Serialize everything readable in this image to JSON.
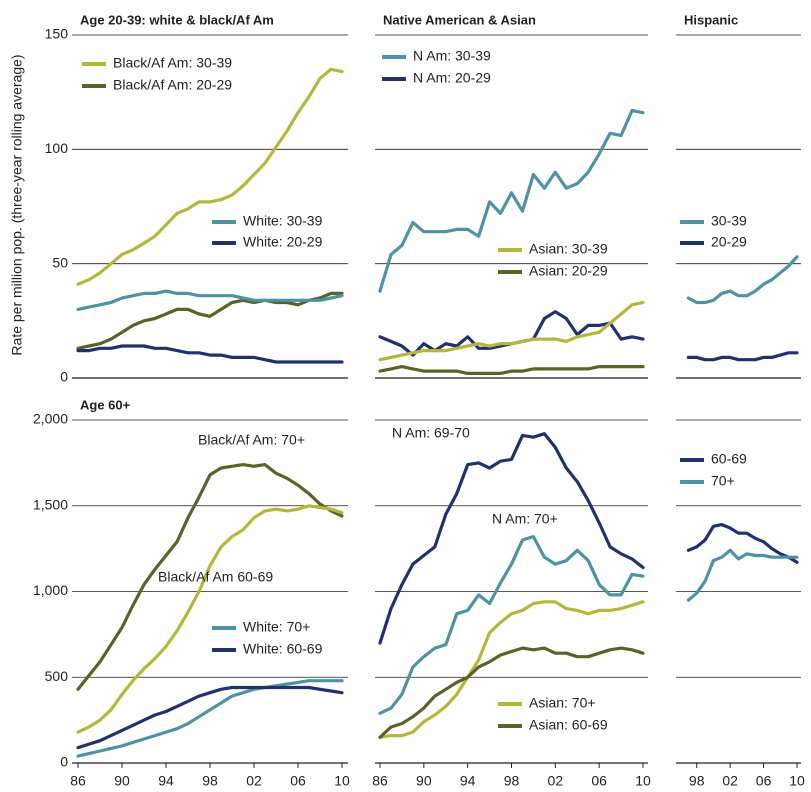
{
  "ylabel": "Rate per million pop. (three-year rolling average)",
  "chart_data": [
    {
      "type": "line",
      "title": "Age 20-39:  white & black/Af Am",
      "x": [
        1986,
        1987,
        1988,
        1989,
        1990,
        1991,
        1992,
        1993,
        1994,
        1995,
        1996,
        1997,
        1998,
        1999,
        2000,
        2001,
        2002,
        2003,
        2004,
        2005,
        2006,
        2007,
        2008,
        2009,
        2010
      ],
      "xlim": [
        1986,
        2010
      ],
      "ylim": [
        0,
        150
      ],
      "yticks": [
        0,
        50,
        100,
        150
      ],
      "grid": true,
      "series": [
        {
          "name": "Black/Af Am: 30-39",
          "color": "#b3b83b",
          "values": [
            41,
            43,
            46,
            50,
            54,
            56,
            59,
            62,
            67,
            72,
            74,
            77,
            77,
            78,
            80,
            84,
            89,
            94,
            101,
            108,
            116,
            123,
            131,
            135,
            134
          ]
        },
        {
          "name": "Black/Af Am: 20-29",
          "color": "#5c6128",
          "values": [
            13,
            14,
            15,
            17,
            20,
            23,
            25,
            26,
            28,
            30,
            30,
            28,
            27,
            30,
            33,
            34,
            33,
            34,
            33,
            33,
            32,
            34,
            35,
            37,
            37
          ]
        },
        {
          "name": "White: 30-39",
          "color": "#4e93a3",
          "values": [
            30,
            31,
            32,
            33,
            35,
            36,
            37,
            37,
            38,
            37,
            37,
            36,
            36,
            36,
            36,
            35,
            34,
            34,
            34,
            34,
            34,
            34,
            34,
            35,
            36
          ]
        },
        {
          "name": "White: 20-29",
          "color": "#23306e",
          "values": [
            12,
            12,
            13,
            13,
            14,
            14,
            14,
            13,
            13,
            12,
            11,
            11,
            10,
            10,
            9,
            9,
            9,
            8,
            7,
            7,
            7,
            7,
            7,
            7,
            7
          ]
        }
      ]
    },
    {
      "type": "line",
      "title": "Native American & Asian",
      "x": [
        1986,
        1987,
        1988,
        1989,
        1990,
        1991,
        1992,
        1993,
        1994,
        1995,
        1996,
        1997,
        1998,
        1999,
        2000,
        2001,
        2002,
        2003,
        2004,
        2005,
        2006,
        2007,
        2008,
        2009,
        2010
      ],
      "xlim": [
        1986,
        2010
      ],
      "ylim": [
        0,
        150
      ],
      "yticks": [
        0,
        50,
        100,
        150
      ],
      "grid": true,
      "series": [
        {
          "name": "N Am: 30-39",
          "color": "#4e93a3",
          "values": [
            38,
            54,
            58,
            68,
            64,
            64,
            64,
            65,
            65,
            62,
            77,
            72,
            81,
            73,
            89,
            83,
            90,
            83,
            85,
            90,
            98,
            107,
            106,
            117,
            116
          ]
        },
        {
          "name": "N Am: 20-29",
          "color": "#23306e",
          "values": [
            18,
            16,
            14,
            10,
            15,
            12,
            15,
            14,
            18,
            13,
            13,
            14,
            15,
            16,
            17,
            26,
            29,
            26,
            19,
            23,
            23,
            24,
            17,
            18,
            17
          ]
        },
        {
          "name": "Asian: 30-39",
          "color": "#b3b83b",
          "values": [
            8,
            9,
            10,
            11,
            12,
            12,
            12,
            13,
            14,
            15,
            14,
            15,
            15,
            16,
            17,
            17,
            17,
            16,
            18,
            19,
            20,
            24,
            28,
            32,
            33
          ]
        },
        {
          "name": "Asian: 20-29",
          "color": "#5c6128",
          "values": [
            3,
            4,
            5,
            4,
            3,
            3,
            3,
            3,
            2,
            2,
            2,
            2,
            3,
            3,
            4,
            4,
            4,
            4,
            4,
            4,
            5,
            5,
            5,
            5,
            5
          ]
        }
      ]
    },
    {
      "type": "line",
      "title": "Hispanic",
      "x": [
        1997,
        1998,
        1999,
        2000,
        2001,
        2002,
        2003,
        2004,
        2005,
        2006,
        2007,
        2008,
        2009,
        2010
      ],
      "xlim": [
        1996,
        2010
      ],
      "ylim": [
        0,
        150
      ],
      "yticks": [
        0,
        50,
        100,
        150
      ],
      "grid": true,
      "series": [
        {
          "name": "30-39",
          "color": "#4e93a3",
          "values": [
            35,
            33,
            33,
            34,
            37,
            38,
            36,
            36,
            38,
            41,
            43,
            46,
            49,
            53
          ]
        },
        {
          "name": "20-29",
          "color": "#23306e",
          "values": [
            9,
            9,
            8,
            8,
            9,
            9,
            8,
            8,
            8,
            9,
            9,
            10,
            11,
            11
          ]
        }
      ]
    },
    {
      "type": "line",
      "title": "Age 60+",
      "x": [
        1986,
        1987,
        1988,
        1989,
        1990,
        1991,
        1992,
        1993,
        1994,
        1995,
        1996,
        1997,
        1998,
        1999,
        2000,
        2001,
        2002,
        2003,
        2004,
        2005,
        2006,
        2007,
        2008,
        2009,
        2010
      ],
      "xlim": [
        1986,
        2010
      ],
      "ylim": [
        0,
        2000
      ],
      "yticks": [
        0,
        500,
        {
          "value": 1000,
          "label": "1,000"
        },
        {
          "value": 1500,
          "label": "1,500"
        },
        {
          "value": 2000,
          "label": "2,000"
        }
      ],
      "xticks": [
        {
          "value": 1986,
          "label": "86"
        },
        {
          "value": 1990,
          "label": "90"
        },
        {
          "value": 1994,
          "label": "94"
        },
        {
          "value": 1998,
          "label": "98"
        },
        {
          "value": 2002,
          "label": "02"
        },
        {
          "value": 2006,
          "label": "06"
        },
        {
          "value": 2010,
          "label": "10"
        }
      ],
      "grid": true,
      "series": [
        {
          "name": "Black/Af Am: 70+",
          "color": "#5c6128",
          "values": [
            430,
            510,
            590,
            690,
            790,
            920,
            1040,
            1130,
            1210,
            1290,
            1430,
            1550,
            1680,
            1720,
            1730,
            1740,
            1730,
            1740,
            1690,
            1660,
            1620,
            1570,
            1510,
            1470,
            1440
          ]
        },
        {
          "name": "Black/Af Am 60-69",
          "color": "#b3b83b",
          "values": [
            180,
            210,
            250,
            310,
            400,
            480,
            550,
            610,
            680,
            770,
            880,
            1000,
            1150,
            1260,
            1320,
            1360,
            1430,
            1470,
            1480,
            1470,
            1480,
            1500,
            1490,
            1480,
            1460
          ]
        },
        {
          "name": "White: 70+",
          "color": "#4e93a3",
          "values": [
            40,
            55,
            70,
            85,
            100,
            120,
            140,
            160,
            180,
            200,
            230,
            270,
            310,
            350,
            390,
            410,
            430,
            440,
            450,
            460,
            470,
            480,
            480,
            480,
            480
          ]
        },
        {
          "name": "White: 60-69",
          "color": "#23306e",
          "values": [
            90,
            110,
            130,
            160,
            190,
            220,
            250,
            280,
            300,
            330,
            360,
            390,
            410,
            430,
            440,
            440,
            440,
            440,
            440,
            440,
            440,
            440,
            430,
            420,
            410
          ]
        }
      ]
    },
    {
      "type": "line",
      "x": [
        1986,
        1987,
        1988,
        1989,
        1990,
        1991,
        1992,
        1993,
        1994,
        1995,
        1996,
        1997,
        1998,
        1999,
        2000,
        2001,
        2002,
        2003,
        2004,
        2005,
        2006,
        2007,
        2008,
        2009,
        2010
      ],
      "xlim": [
        1986,
        2010
      ],
      "ylim": [
        0,
        2000
      ],
      "yticks": [
        0,
        500,
        1000,
        1500,
        2000
      ],
      "xticks": [
        {
          "value": 1986,
          "label": "86"
        },
        {
          "value": 1990,
          "label": "90"
        },
        {
          "value": 1994,
          "label": "94"
        },
        {
          "value": 1998,
          "label": "98"
        },
        {
          "value": 2002,
          "label": "02"
        },
        {
          "value": 2006,
          "label": "06"
        },
        {
          "value": 2010,
          "label": "10"
        }
      ],
      "grid": true,
      "series": [
        {
          "name": "N Am: 69-70",
          "color": "#23306e",
          "values": [
            700,
            900,
            1040,
            1160,
            1210,
            1260,
            1450,
            1570,
            1740,
            1750,
            1720,
            1760,
            1770,
            1910,
            1900,
            1920,
            1840,
            1720,
            1640,
            1530,
            1400,
            1260,
            1220,
            1190,
            1140
          ]
        },
        {
          "name": "N Am: 70+",
          "color": "#4e93a3",
          "values": [
            290,
            320,
            400,
            560,
            620,
            670,
            690,
            870,
            890,
            980,
            930,
            1050,
            1160,
            1300,
            1320,
            1200,
            1160,
            1180,
            1240,
            1180,
            1040,
            980,
            980,
            1100,
            1090
          ]
        },
        {
          "name": "Asian: 70+",
          "color": "#b3b83b",
          "values": [
            150,
            160,
            160,
            180,
            240,
            280,
            330,
            400,
            500,
            600,
            760,
            820,
            870,
            890,
            930,
            940,
            940,
            900,
            890,
            870,
            890,
            890,
            900,
            920,
            940
          ]
        },
        {
          "name": "Asian: 60-69",
          "color": "#5c6128",
          "values": [
            150,
            210,
            230,
            270,
            320,
            390,
            430,
            470,
            500,
            560,
            590,
            630,
            650,
            670,
            660,
            670,
            640,
            640,
            620,
            620,
            640,
            660,
            670,
            660,
            640
          ]
        }
      ]
    },
    {
      "type": "line",
      "x": [
        1997,
        1998,
        1999,
        2000,
        2001,
        2002,
        2003,
        2004,
        2005,
        2006,
        2007,
        2008,
        2009,
        2010
      ],
      "xlim": [
        1996,
        2010
      ],
      "ylim": [
        0,
        2000
      ],
      "yticks": [
        0,
        500,
        1000,
        1500,
        2000
      ],
      "xticks": [
        {
          "value": 1998,
          "label": "98"
        },
        {
          "value": 2002,
          "label": "02"
        },
        {
          "value": 2006,
          "label": "06"
        },
        {
          "value": 2010,
          "label": "10"
        }
      ],
      "grid": true,
      "series": [
        {
          "name": "60-69",
          "color": "#23306e",
          "values": [
            1240,
            1260,
            1300,
            1380,
            1390,
            1370,
            1340,
            1340,
            1310,
            1290,
            1250,
            1220,
            1200,
            1170
          ]
        },
        {
          "name": "70+",
          "color": "#4e93a3",
          "values": [
            950,
            990,
            1060,
            1180,
            1200,
            1240,
            1190,
            1220,
            1210,
            1210,
            1200,
            1200,
            1200,
            1200
          ]
        }
      ]
    }
  ]
}
